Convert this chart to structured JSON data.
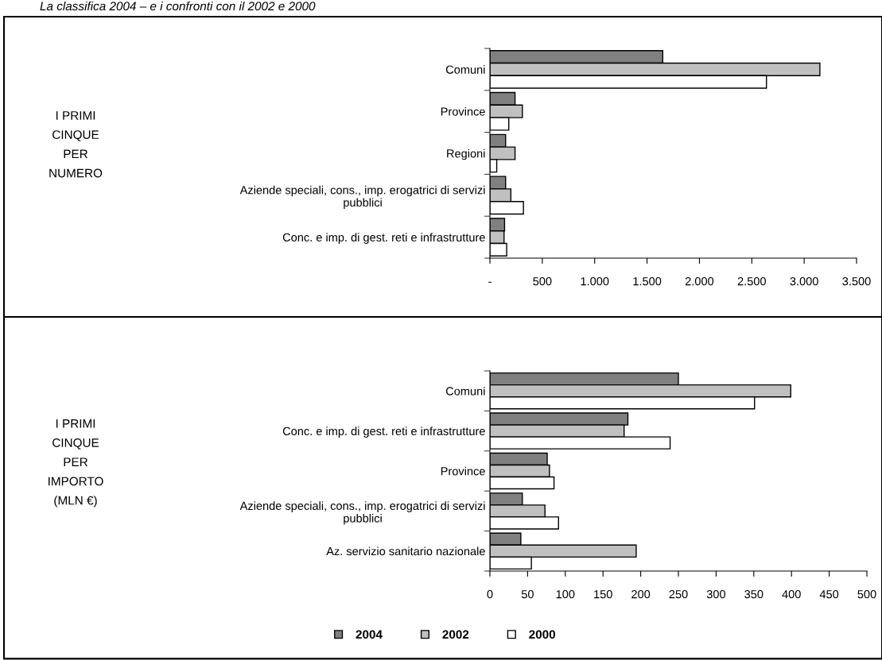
{
  "chart_data": [
    {
      "type": "bar",
      "orientation": "horizontal",
      "title": "La classifica 2004 – e i confronti con il 2002 e 2000",
      "annotations": [
        "I PRIMI\nCINQUE\nPER\nNUMERO"
      ],
      "categories": [
        "Comuni",
        "Province",
        "Regioni",
        "Aziende speciali, cons., imp. erogatrici di servizi\npubblici",
        "Conc. e imp. di gest. reti e infrastrutture"
      ],
      "series": [
        {
          "color": "#808080",
          "values": [
            1650,
            240,
            150,
            150,
            140
          ]
        },
        {
          "color": "#c0c0c0",
          "values": [
            3150,
            310,
            240,
            200,
            135
          ]
        },
        {
          "color": "#ffffff",
          "values": [
            2640,
            180,
            65,
            320,
            160
          ]
        }
      ],
      "xlim": [
        0,
        3500
      ],
      "xticks": [
        {
          "value": 0,
          "label": "-"
        },
        {
          "value": 500,
          "label": "500"
        },
        {
          "value": 1000,
          "label": "1.000"
        },
        {
          "value": 1500,
          "label": "1.500"
        },
        {
          "value": 2000,
          "label": "2.000"
        },
        {
          "value": 2500,
          "label": "2.500"
        },
        {
          "value": 3000,
          "label": "3.000"
        },
        {
          "value": 3500,
          "label": "3.500"
        }
      ],
      "grid": false,
      "legend": false
    },
    {
      "type": "bar",
      "orientation": "horizontal",
      "annotations": [
        "I PRIMI\nCINQUE\nPER\nIMPORTO\n(MLN €)"
      ],
      "categories": [
        "Comuni",
        "Conc. e imp. di gest. reti e infrastrutture",
        "Province",
        "Aziende speciali, cons., imp. erogatrici di servizi\npubblici",
        "Az. servizio sanitario nazionale"
      ],
      "series": [
        {
          "name": "2004",
          "color": "#808080",
          "values": [
            250,
            183,
            76,
            43,
            41
          ]
        },
        {
          "name": "2002",
          "color": "#c0c0c0",
          "values": [
            399,
            178,
            79,
            73,
            194
          ]
        },
        {
          "name": "2000",
          "color": "#ffffff",
          "values": [
            351,
            239,
            85,
            91,
            55
          ]
        }
      ],
      "xlim": [
        0,
        500
      ],
      "xticks": [
        0,
        50,
        100,
        150,
        200,
        250,
        300,
        350,
        400,
        450,
        500
      ],
      "grid": false,
      "legend": "bottom"
    }
  ]
}
